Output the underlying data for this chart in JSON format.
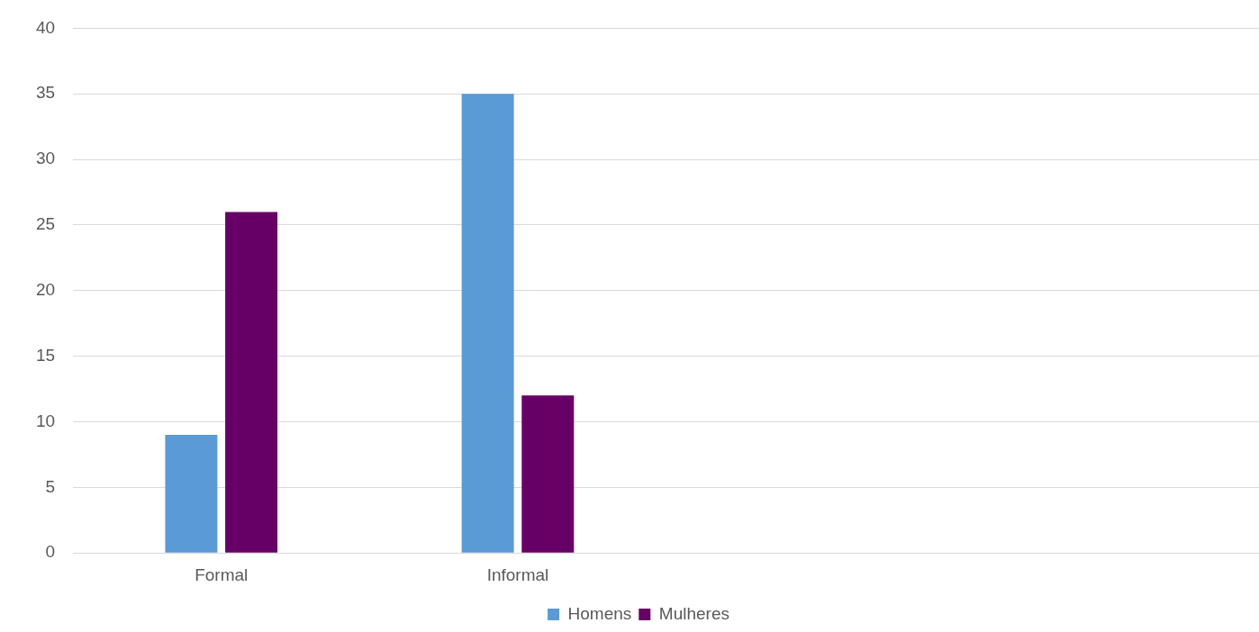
{
  "chart_data": {
    "type": "bar",
    "categories": [
      "Formal",
      "Informal",
      null,
      null
    ],
    "series": [
      {
        "name": "Homens",
        "color": "#5b9bd5",
        "values": [
          9,
          35,
          null,
          null
        ]
      },
      {
        "name": "Mulheres",
        "color": "#660066",
        "values": [
          26,
          12,
          null,
          null
        ]
      }
    ],
    "ylim": [
      0,
      40
    ],
    "yticks": [
      0,
      5,
      10,
      15,
      20,
      25,
      30,
      35,
      40
    ],
    "grid": "y",
    "legend": "bottom"
  }
}
